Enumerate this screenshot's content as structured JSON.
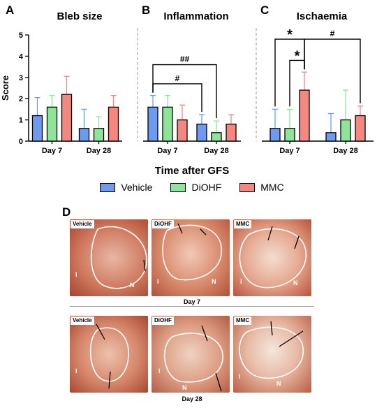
{
  "chart_data": [
    {
      "panel": "A",
      "type": "bar",
      "title": "Bleb size",
      "ylabel": "Score",
      "ylim": [
        0,
        5
      ],
      "yticks": [
        0,
        1,
        2,
        3,
        4,
        5
      ],
      "categories": [
        "Day 7",
        "Day 28"
      ],
      "series": [
        {
          "name": "Vehicle",
          "values": [
            1.2,
            0.6
          ],
          "errors": [
            0.85,
            0.9
          ]
        },
        {
          "name": "DiOHF",
          "values": [
            1.6,
            0.6
          ],
          "errors": [
            0.55,
            0.55
          ]
        },
        {
          "name": "MMC",
          "values": [
            2.2,
            1.6
          ],
          "errors": [
            0.85,
            0.55
          ]
        }
      ],
      "annotations": []
    },
    {
      "panel": "B",
      "type": "bar",
      "title": "Inflammation",
      "ylim": [
        0,
        5
      ],
      "categories": [
        "Day 7",
        "Day 28"
      ],
      "series": [
        {
          "name": "Vehicle",
          "values": [
            1.6,
            0.8
          ],
          "errors": [
            0.55,
            0.45
          ]
        },
        {
          "name": "DiOHF",
          "values": [
            1.6,
            0.4
          ],
          "errors": [
            0.55,
            0.55
          ]
        },
        {
          "name": "MMC",
          "values": [
            1.0,
            0.8
          ],
          "errors": [
            0.7,
            0.45
          ]
        }
      ],
      "annotations": [
        {
          "label": "#",
          "from": [
            0,
            0
          ],
          "to": [
            1,
            0
          ],
          "y": 2.7
        },
        {
          "label": "##",
          "from": [
            0,
            0
          ],
          "to": [
            1,
            1
          ],
          "y": 3.6
        }
      ]
    },
    {
      "panel": "C",
      "type": "bar",
      "title": "Ischaemia",
      "ylim": [
        0,
        5
      ],
      "categories": [
        "Day 7",
        "Day 28"
      ],
      "series": [
        {
          "name": "Vehicle",
          "values": [
            0.6,
            0.4
          ],
          "errors": [
            0.9,
            0.9
          ]
        },
        {
          "name": "DiOHF",
          "values": [
            0.6,
            1.0
          ],
          "errors": [
            0.9,
            1.4
          ]
        },
        {
          "name": "MMC",
          "values": [
            2.4,
            1.2
          ],
          "errors": [
            0.85,
            0.45
          ]
        }
      ],
      "annotations": [
        {
          "label": "*",
          "from": [
            0,
            1
          ],
          "to": [
            0,
            2
          ],
          "y": 3.8
        },
        {
          "label": "*",
          "from": [
            0,
            0
          ],
          "to": [
            0,
            2
          ],
          "y": 4.8
        },
        {
          "label": "#",
          "from": [
            0,
            2
          ],
          "to": [
            1,
            2
          ],
          "y": 4.8
        }
      ]
    }
  ],
  "colors": {
    "Vehicle": "#6e9bf0",
    "DiOHF": "#8ee59a",
    "MMC": "#f4877f"
  },
  "xaxis_title": "Time after GFS",
  "legend": [
    "Vehicle",
    "DiOHF",
    "MMC"
  ],
  "panel_d": {
    "label": "D",
    "rows": [
      {
        "label": "Day 7",
        "photos": [
          {
            "tag": "Vehicle",
            "markers": [
              "I",
              "N"
            ]
          },
          {
            "tag": "DiOHF",
            "markers": [
              "I",
              "N"
            ]
          },
          {
            "tag": "MMC",
            "markers": [
              "I",
              "N"
            ]
          }
        ]
      },
      {
        "label": "Day 28",
        "photos": [
          {
            "tag": "Vehicle",
            "markers": [
              "I"
            ]
          },
          {
            "tag": "DiOHF",
            "markers": [
              "I",
              "N"
            ]
          },
          {
            "tag": "MMC",
            "markers": [
              "I",
              "N"
            ]
          }
        ]
      }
    ]
  }
}
